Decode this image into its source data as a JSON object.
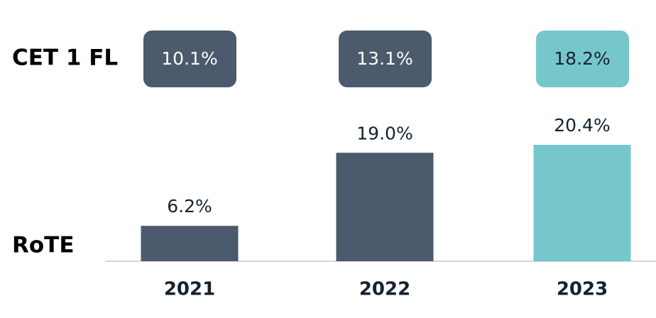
{
  "chart_data": {
    "type": "bar",
    "categories": [
      "2021",
      "2022",
      "2023"
    ],
    "series": [
      {
        "name": "CET 1 FL",
        "type": "badge",
        "values": [
          10.1,
          13.1,
          18.2
        ],
        "value_labels": [
          "10.1%",
          "13.1%",
          "18.2%"
        ],
        "colors": [
          "#4b5b6d",
          "#4b5b6d",
          "#76c7cc"
        ]
      },
      {
        "name": "RoTE",
        "type": "bar",
        "values": [
          6.2,
          19.0,
          20.4
        ],
        "value_labels": [
          "6.2%",
          "19.0%",
          "20.4%"
        ],
        "colors": [
          "#4b5b6d",
          "#4b5b6d",
          "#76c7cc"
        ]
      }
    ]
  }
}
